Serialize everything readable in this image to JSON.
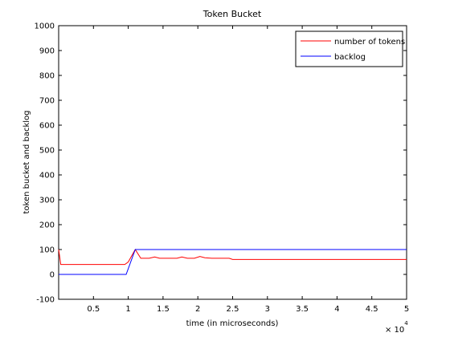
{
  "chart_data": {
    "type": "line",
    "title": "Token Bucket",
    "xlabel": "time (in microseconds)",
    "ylabel": "token bucket and backlog",
    "x_multiplier_base": "× 10",
    "x_multiplier_exp": "4",
    "xlim": [
      0,
      50000
    ],
    "ylim": [
      -100,
      1000
    ],
    "x_ticks": [
      {
        "value": 5000,
        "label": "0.5"
      },
      {
        "value": 10000,
        "label": "1"
      },
      {
        "value": 15000,
        "label": "1.5"
      },
      {
        "value": 20000,
        "label": "2"
      },
      {
        "value": 25000,
        "label": "2.5"
      },
      {
        "value": 30000,
        "label": "3"
      },
      {
        "value": 35000,
        "label": "3.5"
      },
      {
        "value": 40000,
        "label": "4"
      },
      {
        "value": 45000,
        "label": "4.5"
      },
      {
        "value": 50000,
        "label": "5"
      }
    ],
    "y_ticks": [
      {
        "value": -100,
        "label": "-100"
      },
      {
        "value": 0,
        "label": "0"
      },
      {
        "value": 100,
        "label": "100"
      },
      {
        "value": 200,
        "label": "200"
      },
      {
        "value": 300,
        "label": "300"
      },
      {
        "value": 400,
        "label": "400"
      },
      {
        "value": 500,
        "label": "500"
      },
      {
        "value": 600,
        "label": "600"
      },
      {
        "value": 700,
        "label": "700"
      },
      {
        "value": 800,
        "label": "800"
      },
      {
        "value": 900,
        "label": "900"
      },
      {
        "value": 1000,
        "label": "1000"
      }
    ],
    "grid": false,
    "legend_position": "top-right",
    "series": [
      {
        "name": "number of tokens",
        "color": "#ff0000",
        "x": [
          0,
          300,
          1000,
          9500,
          10000,
          11000,
          11800,
          13000,
          13800,
          14500,
          15500,
          17000,
          17700,
          18500,
          19500,
          20300,
          21000,
          22000,
          23000,
          24500,
          25000,
          26000,
          50000
        ],
        "y": [
          100,
          40,
          40,
          40,
          50,
          100,
          65,
          65,
          70,
          65,
          65,
          65,
          70,
          65,
          65,
          72,
          67,
          65,
          65,
          65,
          60,
          60,
          60
        ]
      },
      {
        "name": "backlog",
        "color": "#0000ff",
        "x": [
          0,
          9700,
          11000,
          50000
        ],
        "y": [
          0,
          0,
          100,
          100
        ]
      }
    ]
  }
}
